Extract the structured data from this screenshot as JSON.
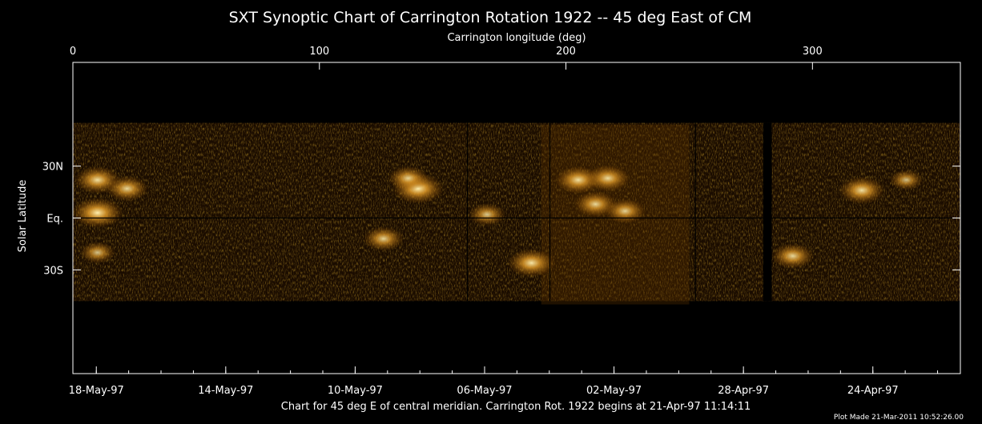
{
  "chart_data": {
    "type": "heatmap",
    "title": "SXT Synoptic Chart of Carrington Rotation 1922 -- 45 deg East of CM",
    "top_axis": {
      "label": "Carrington longitude (deg)",
      "ticks": [
        0,
        100,
        200,
        300
      ],
      "range": [
        0,
        360
      ]
    },
    "y_axis": {
      "label": "Solar Latitude",
      "ticks": [
        {
          "label": "30N",
          "value": 30
        },
        {
          "label": "Eq.",
          "value": 0
        },
        {
          "label": "30S",
          "value": -30
        }
      ],
      "range": [
        -90,
        90
      ]
    },
    "bottom_axis": {
      "ticks": [
        {
          "label": "18-May-97",
          "lon": 9.5
        },
        {
          "label": "14-May-97",
          "lon": 62
        },
        {
          "label": "10-May-97",
          "lon": 114.5
        },
        {
          "label": "06-May-97",
          "lon": 167
        },
        {
          "label": "02-May-97",
          "lon": 219.5
        },
        {
          "label": "28-Apr-97",
          "lon": 272
        },
        {
          "label": "24-Apr-97",
          "lon": 324.5
        }
      ]
    },
    "vertical_markers_lon": [
      160,
      193.5,
      252.5
    ],
    "data_gaps_lon": [
      [
        280,
        283.5
      ]
    ],
    "bright_regions": [
      {
        "lon": 10,
        "lat": 3,
        "intensity": 1.0
      },
      {
        "lon": 10,
        "lat": 22,
        "intensity": 0.85
      },
      {
        "lon": 22,
        "lat": 17,
        "intensity": 0.75
      },
      {
        "lon": 140,
        "lat": 17,
        "intensity": 1.0
      },
      {
        "lon": 136,
        "lat": 23,
        "intensity": 0.7
      },
      {
        "lon": 205,
        "lat": 22,
        "intensity": 0.85
      },
      {
        "lon": 217,
        "lat": 23,
        "intensity": 0.8
      },
      {
        "lon": 212,
        "lat": 8,
        "intensity": 0.75
      },
      {
        "lon": 224,
        "lat": 4,
        "intensity": 0.7
      },
      {
        "lon": 186,
        "lat": -26,
        "intensity": 0.9
      },
      {
        "lon": 126,
        "lat": -12,
        "intensity": 0.7
      },
      {
        "lon": 168,
        "lat": 2,
        "intensity": 0.6
      },
      {
        "lon": 292,
        "lat": -22,
        "intensity": 0.75
      },
      {
        "lon": 320,
        "lat": 16,
        "intensity": 0.85
      },
      {
        "lon": 338,
        "lat": 22,
        "intensity": 0.5
      },
      {
        "lon": 10,
        "lat": -20,
        "intensity": 0.55
      }
    ],
    "colormap": [
      "#000000",
      "#3a1a00",
      "#8a4c00",
      "#e0a030",
      "#fff2c0"
    ],
    "line_color": "#000000",
    "grid": false
  },
  "footer": {
    "caption": "Chart for 45 deg E of central meridian.  Carrington Rot. 1922 begins at 21-Apr-97 11:14:11",
    "plot_made": "Plot Made 21-Mar-2011 10:52:26.00"
  }
}
